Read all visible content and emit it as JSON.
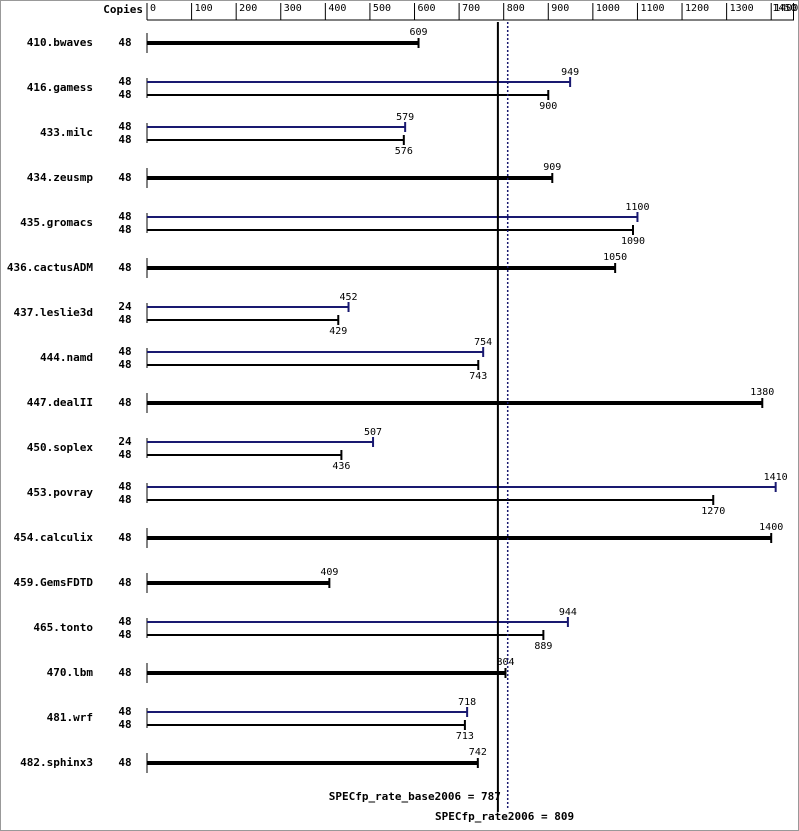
{
  "chart_data": {
    "type": "bar",
    "orientation": "horizontal",
    "copies_label": "Copies",
    "xlim": [
      0,
      1450
    ],
    "xticks": [
      0,
      100,
      200,
      300,
      400,
      500,
      600,
      700,
      800,
      900,
      1000,
      1100,
      1200,
      1300,
      1400,
      1450
    ],
    "categories": [
      "410.bwaves",
      "416.gamess",
      "433.milc",
      "434.zeusmp",
      "435.gromacs",
      "436.cactusADM",
      "437.leslie3d",
      "444.namd",
      "447.dealII",
      "450.soplex",
      "453.povray",
      "454.calculix",
      "459.GemsFDTD",
      "465.tonto",
      "470.lbm",
      "481.wrf",
      "482.sphinx3"
    ],
    "series": [
      {
        "color": "#191970",
        "copies": [
          null,
          48,
          48,
          null,
          48,
          null,
          24,
          48,
          null,
          24,
          48,
          null,
          null,
          48,
          null,
          48,
          null
        ],
        "values": [
          null,
          949,
          579,
          null,
          1100,
          null,
          452,
          754,
          null,
          507,
          1410,
          null,
          null,
          944,
          null,
          718,
          null
        ]
      },
      {
        "color": "#000000",
        "copies": [
          48,
          48,
          48,
          48,
          48,
          48,
          48,
          48,
          48,
          48,
          48,
          48,
          48,
          48,
          48,
          48,
          48
        ],
        "values": [
          609,
          900,
          576,
          909,
          1090,
          1050,
          429,
          743,
          1380,
          436,
          1270,
          1400,
          409,
          889,
          804,
          713,
          742
        ]
      }
    ],
    "reference_lines": [
      {
        "label": "SPECfp_rate_base2006 = 787",
        "value": 787,
        "color": "#000000",
        "style": "solid"
      },
      {
        "label": "SPECfp_rate2006 = 809",
        "value": 809,
        "color": "#191970",
        "style": "dotted"
      }
    ]
  }
}
